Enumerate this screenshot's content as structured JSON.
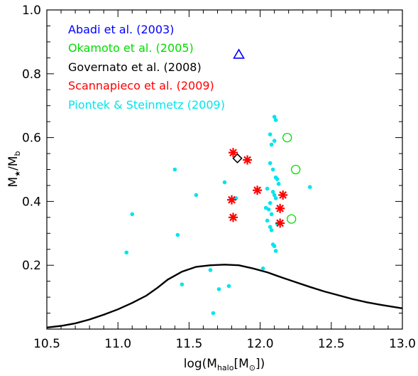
{
  "chart_data": {
    "type": "scatter",
    "xlim": [
      10.5,
      13.0
    ],
    "ylim": [
      0.0,
      1.0
    ],
    "x_ticks": [
      10.5,
      11.0,
      11.5,
      12.0,
      12.5,
      13.0
    ],
    "x_tick_labels": [
      "10.5",
      "11.0",
      "11.5",
      "12.0",
      "12.5",
      "13.0"
    ],
    "y_ticks": [
      0.2,
      0.4,
      0.6,
      0.8,
      1.0
    ],
    "y_tick_labels": [
      "0.2",
      "0.4",
      "0.6",
      "0.8",
      "1.0"
    ],
    "xlabel": {
      "pre": "log(M",
      "sub1": "halo",
      "mid": "[M",
      "sub2": "⊙",
      "post": "])"
    },
    "ylabel": {
      "m1": "M",
      "sub1": "★",
      "slash": "/M",
      "sub2": "b"
    },
    "legend_placement": "top-left",
    "legend": [
      {
        "label": "Abadi et al. (2003)",
        "color": "#0000ff"
      },
      {
        "label": "Okamoto et al. (2005)",
        "color": "#00dd00"
      },
      {
        "label": "Governato et al. (2008)",
        "color": "#000000"
      },
      {
        "label": "Scannapieco et al. (2009)",
        "color": "#ff0000"
      },
      {
        "label": "Piontek & Steinmetz (2009)",
        "color": "#00e5ee"
      }
    ],
    "series": [
      {
        "marker": "triangle",
        "color": "#0000ff",
        "x": [
          11.85
        ],
        "y": [
          0.86
        ]
      },
      {
        "marker": "circle",
        "color": "#00dd00",
        "x": [
          12.19,
          12.25,
          12.22
        ],
        "y": [
          0.6,
          0.5,
          0.345
        ]
      },
      {
        "marker": "diamond",
        "color": "#000000",
        "x": [
          11.84
        ],
        "y": [
          0.535
        ]
      },
      {
        "marker": "asterisk",
        "color": "#ff0000",
        "x": [
          11.81,
          11.91,
          11.98,
          11.8,
          12.16,
          12.14,
          11.81,
          12.14
        ],
        "y": [
          0.553,
          0.53,
          0.435,
          0.405,
          0.42,
          0.378,
          0.35,
          0.332
        ]
      },
      {
        "marker": "dot",
        "color": "#00e5ee",
        "x": [
          12.1,
          12.11,
          12.07,
          12.1,
          12.08,
          12.07,
          12.09,
          12.11,
          12.12,
          12.13,
          12.05,
          12.09,
          12.1,
          12.11,
          12.07,
          12.06,
          12.08,
          12.05,
          12.12,
          12.07,
          12.08,
          12.09,
          12.1,
          12.35,
          11.4,
          11.55,
          11.75,
          11.83,
          11.1,
          11.42,
          11.06,
          11.65,
          11.71,
          11.78,
          11.45,
          11.67,
          12.02,
          12.11,
          12.04
        ],
        "y": [
          0.665,
          0.655,
          0.61,
          0.59,
          0.578,
          0.52,
          0.5,
          0.475,
          0.47,
          0.455,
          0.44,
          0.43,
          0.42,
          0.41,
          0.395,
          0.375,
          0.36,
          0.34,
          0.33,
          0.32,
          0.31,
          0.265,
          0.26,
          0.445,
          0.5,
          0.42,
          0.46,
          0.41,
          0.36,
          0.295,
          0.24,
          0.185,
          0.125,
          0.135,
          0.14,
          0.05,
          0.19,
          0.245,
          0.38
        ]
      }
    ],
    "line": {
      "color": "#000000",
      "x": [
        10.5,
        10.6,
        10.7,
        10.8,
        10.9,
        11.0,
        11.1,
        11.2,
        11.28,
        11.35,
        11.45,
        11.55,
        11.65,
        11.75,
        11.85,
        11.95,
        12.05,
        12.15,
        12.25,
        12.35,
        12.45,
        12.55,
        12.65,
        12.75,
        12.85,
        13.0
      ],
      "y": [
        0.005,
        0.01,
        0.018,
        0.03,
        0.045,
        0.062,
        0.082,
        0.105,
        0.13,
        0.155,
        0.18,
        0.195,
        0.2,
        0.202,
        0.2,
        0.19,
        0.178,
        0.162,
        0.147,
        0.132,
        0.118,
        0.106,
        0.094,
        0.084,
        0.076,
        0.065
      ]
    }
  }
}
